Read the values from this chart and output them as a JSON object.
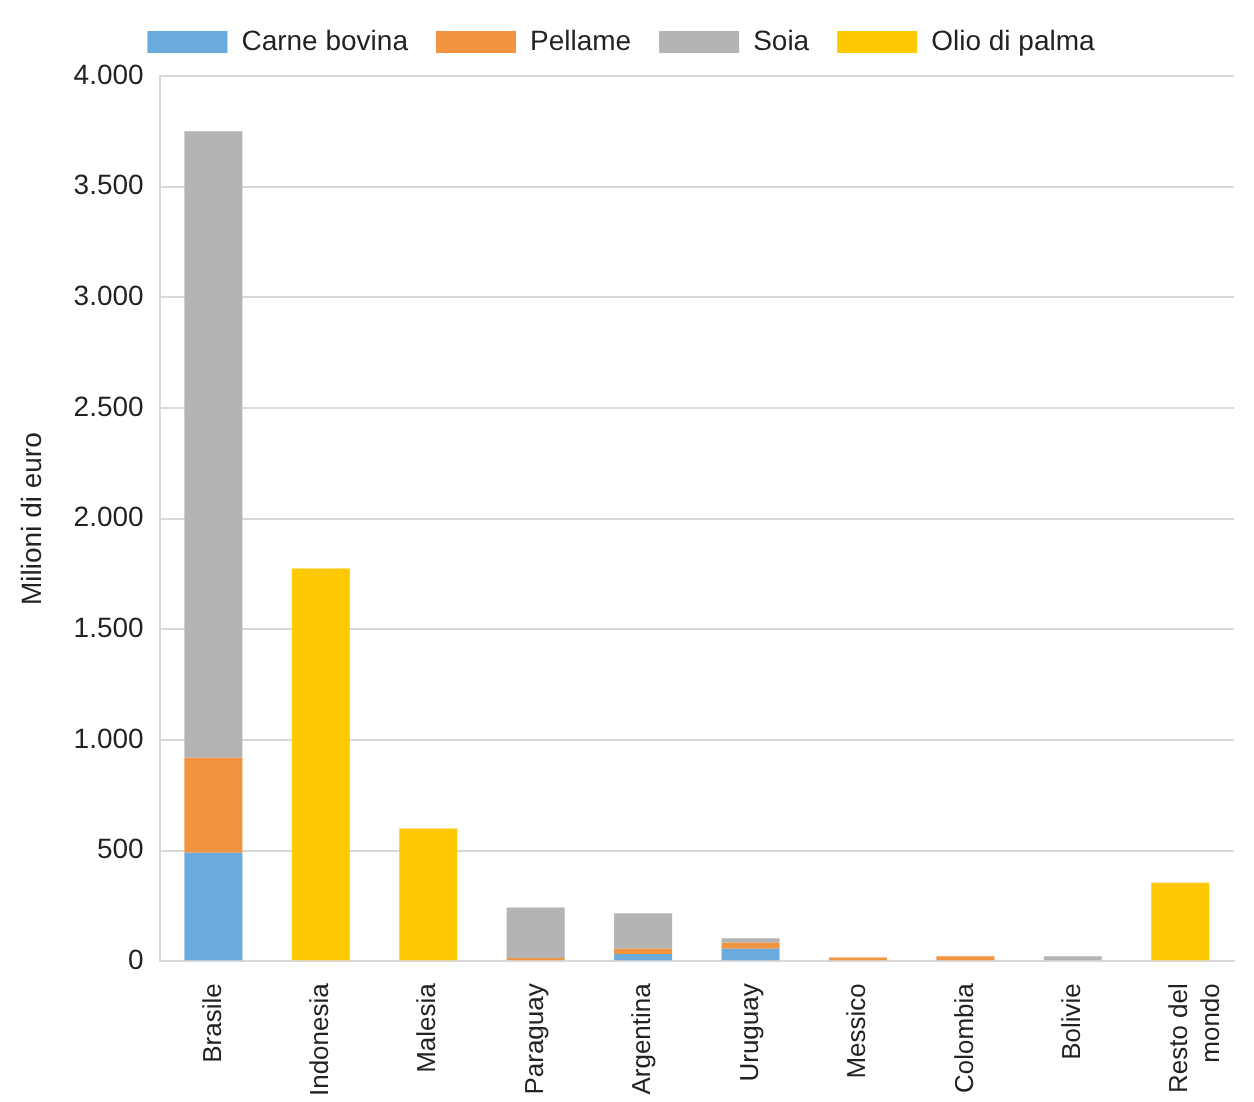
{
  "chart_data": {
    "type": "bar",
    "stacked": true,
    "ylabel": "Milioni di euro",
    "categories": [
      "Brasile",
      "Indonesia",
      "Malesia",
      "Paraguay",
      "Argentina",
      "Uruguay",
      "Messico",
      "Colombia",
      "Bolivie",
      "Resto del mondo"
    ],
    "series": [
      {
        "name": "Carne bovina",
        "color": "#6aabdc",
        "values": [
          490,
          0,
          0,
          0,
          33,
          57,
          0,
          0,
          0,
          0
        ]
      },
      {
        "name": "Pellame",
        "color": "#f29340",
        "values": [
          430,
          0,
          0,
          15,
          23,
          27,
          17,
          23,
          0,
          0
        ]
      },
      {
        "name": "Soia",
        "color": "#b4b4b4",
        "values": [
          2830,
          0,
          0,
          228,
          161,
          20,
          0,
          0,
          23,
          0
        ]
      },
      {
        "name": "Olio di palma",
        "color": "#ffc805",
        "values": [
          0,
          1775,
          600,
          0,
          0,
          0,
          0,
          0,
          0,
          355
        ]
      }
    ],
    "ylim": [
      0,
      4000
    ],
    "yticks": [
      {
        "value": 0,
        "label": "0"
      },
      {
        "value": 500,
        "label": "500"
      },
      {
        "value": 1000,
        "label": "1.000"
      },
      {
        "value": 1500,
        "label": "1.500"
      },
      {
        "value": 2000,
        "label": "2.000"
      },
      {
        "value": 2500,
        "label": "2.500"
      },
      {
        "value": 3000,
        "label": "3.000"
      },
      {
        "value": 3500,
        "label": "3.500"
      },
      {
        "value": 4000,
        "label": "4.000"
      }
    ],
    "grid": "y",
    "legend": "top"
  }
}
